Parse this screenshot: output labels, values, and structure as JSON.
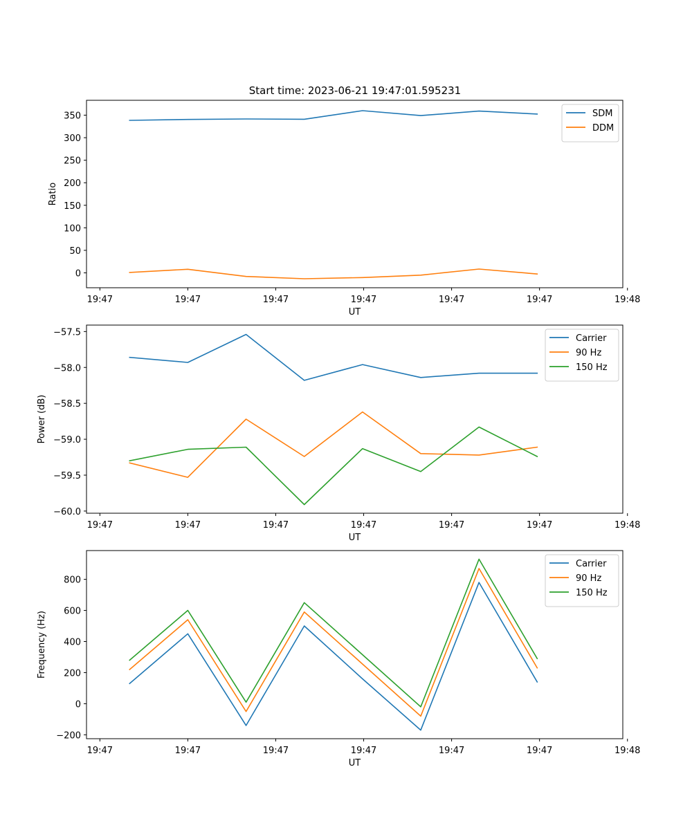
{
  "figure": {
    "title": "Start time: 2023-06-21 19:47:01.595231"
  },
  "chart_data": [
    {
      "type": "line",
      "title": "Start time: 2023-06-21 19:47:01.595231",
      "xlabel": "UT",
      "ylabel": "Ratio",
      "x": [
        1,
        2,
        3,
        4,
        5,
        6,
        7,
        8
      ],
      "xlim": [
        0.26,
        9.47
      ],
      "x_ticks": [
        0.49,
        2.0,
        3.51,
        5.02,
        6.53,
        8.04,
        9.55
      ],
      "x_tick_labels": [
        "19:47",
        "19:47",
        "19:47",
        "19:47",
        "19:47",
        "19:47",
        "19:48"
      ],
      "ylim": [
        -33,
        383
      ],
      "y_ticks": [
        0,
        50,
        100,
        150,
        200,
        250,
        300,
        350
      ],
      "y_tick_labels": [
        "0",
        "50",
        "100",
        "150",
        "200",
        "250",
        "300",
        "350"
      ],
      "legend_position": "upper right",
      "grid": false,
      "series": [
        {
          "name": "SDM",
          "color": "#1f77b4",
          "values": [
            338.5,
            340.5,
            341.5,
            341,
            360,
            349,
            359,
            352.5
          ]
        },
        {
          "name": "DDM",
          "color": "#ff7f0e",
          "values": [
            1,
            8,
            -8,
            -13,
            -10.5,
            -5,
            8.5,
            -2.5
          ]
        }
      ]
    },
    {
      "type": "line",
      "title": "",
      "xlabel": "UT",
      "ylabel": "Power (dB)",
      "x": [
        1,
        2,
        3,
        4,
        5,
        6,
        7,
        8
      ],
      "xlim": [
        0.26,
        9.47
      ],
      "x_ticks": [
        0.49,
        2.0,
        3.51,
        5.02,
        6.53,
        8.04,
        9.55
      ],
      "x_tick_labels": [
        "19:47",
        "19:47",
        "19:47",
        "19:47",
        "19:47",
        "19:47",
        "19:48"
      ],
      "ylim": [
        -60.03,
        -57.41
      ],
      "y_ticks": [
        -60.0,
        -59.5,
        -59.0,
        -58.5,
        -58.0,
        -57.5
      ],
      "y_tick_labels": [
        "−60.0",
        "−59.5",
        "−59.0",
        "−58.5",
        "−58.0",
        "−57.5"
      ],
      "legend_position": "upper right",
      "grid": false,
      "series": [
        {
          "name": "Carrier",
          "color": "#1f77b4",
          "values": [
            -57.86,
            -57.93,
            -57.54,
            -58.18,
            -57.96,
            -58.14,
            -58.08,
            -58.08
          ]
        },
        {
          "name": "90 Hz",
          "color": "#ff7f0e",
          "values": [
            -59.33,
            -59.53,
            -58.72,
            -59.24,
            -58.62,
            -59.2,
            -59.22,
            -59.11
          ]
        },
        {
          "name": "150 Hz",
          "color": "#2ca02c",
          "values": [
            -59.3,
            -59.14,
            -59.11,
            -59.91,
            -59.13,
            -59.45,
            -58.83,
            -59.24
          ]
        }
      ]
    },
    {
      "type": "line",
      "title": "",
      "xlabel": "UT",
      "ylabel": "Frequency (Hz)",
      "x": [
        1,
        2,
        3,
        4,
        5,
        6,
        7,
        8
      ],
      "xlim": [
        0.26,
        9.47
      ],
      "x_ticks": [
        0.49,
        2.0,
        3.51,
        5.02,
        6.53,
        8.04,
        9.55
      ],
      "x_tick_labels": [
        "19:47",
        "19:47",
        "19:47",
        "19:47",
        "19:47",
        "19:47",
        "19:48"
      ],
      "ylim": [
        -225,
        985
      ],
      "y_ticks": [
        -200,
        0,
        200,
        400,
        600,
        800
      ],
      "y_tick_labels": [
        "−200",
        "0",
        "200",
        "400",
        "600",
        "800"
      ],
      "legend_position": "upper right",
      "grid": false,
      "series": [
        {
          "name": "Carrier",
          "color": "#1f77b4",
          "values": [
            130,
            450,
            -140,
            500,
            160,
            -170,
            780,
            140
          ]
        },
        {
          "name": "90 Hz",
          "color": "#ff7f0e",
          "values": [
            220,
            540,
            -50,
            590,
            255,
            -80,
            870,
            230
          ]
        },
        {
          "name": "150 Hz",
          "color": "#2ca02c",
          "values": [
            280,
            600,
            10,
            650,
            315,
            -20,
            930,
            290
          ]
        }
      ]
    }
  ]
}
